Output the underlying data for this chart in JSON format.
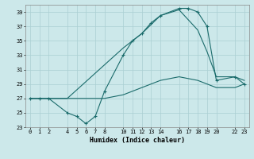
{
  "xlabel": "Humidex (Indice chaleur)",
  "bg_color": "#cce8ea",
  "grid_color": "#aacfd2",
  "line_color": "#1a6b6b",
  "xlim": [
    -0.5,
    23.5
  ],
  "ylim": [
    23,
    40
  ],
  "xticks": [
    0,
    1,
    2,
    4,
    5,
    6,
    7,
    8,
    10,
    11,
    12,
    13,
    14,
    16,
    17,
    18,
    19,
    20,
    22,
    23
  ],
  "yticks": [
    23,
    25,
    27,
    29,
    31,
    33,
    35,
    37,
    39
  ],
  "s1x": [
    0,
    1,
    2,
    4,
    5,
    6,
    7,
    8,
    10,
    11,
    12,
    13,
    14,
    16,
    17,
    18,
    19,
    20,
    22,
    23
  ],
  "s1y": [
    27,
    27,
    27,
    25,
    24.5,
    23.5,
    24.5,
    28,
    33,
    35,
    36,
    37.5,
    38.5,
    39.5,
    39.5,
    39,
    37,
    29.5,
    30,
    29
  ],
  "s2x": [
    0,
    2,
    4,
    10,
    12,
    14,
    16,
    18,
    19,
    20,
    22,
    23
  ],
  "s2y": [
    27,
    27,
    27,
    34,
    36,
    38.5,
    39.3,
    36.5,
    33.5,
    30,
    30,
    29.5
  ],
  "s3x": [
    0,
    2,
    4,
    8,
    10,
    12,
    14,
    16,
    18,
    20,
    22,
    23
  ],
  "s3y": [
    27,
    27,
    27,
    27,
    27.5,
    28.5,
    29.5,
    30,
    29.5,
    28.5,
    28.5,
    29
  ]
}
